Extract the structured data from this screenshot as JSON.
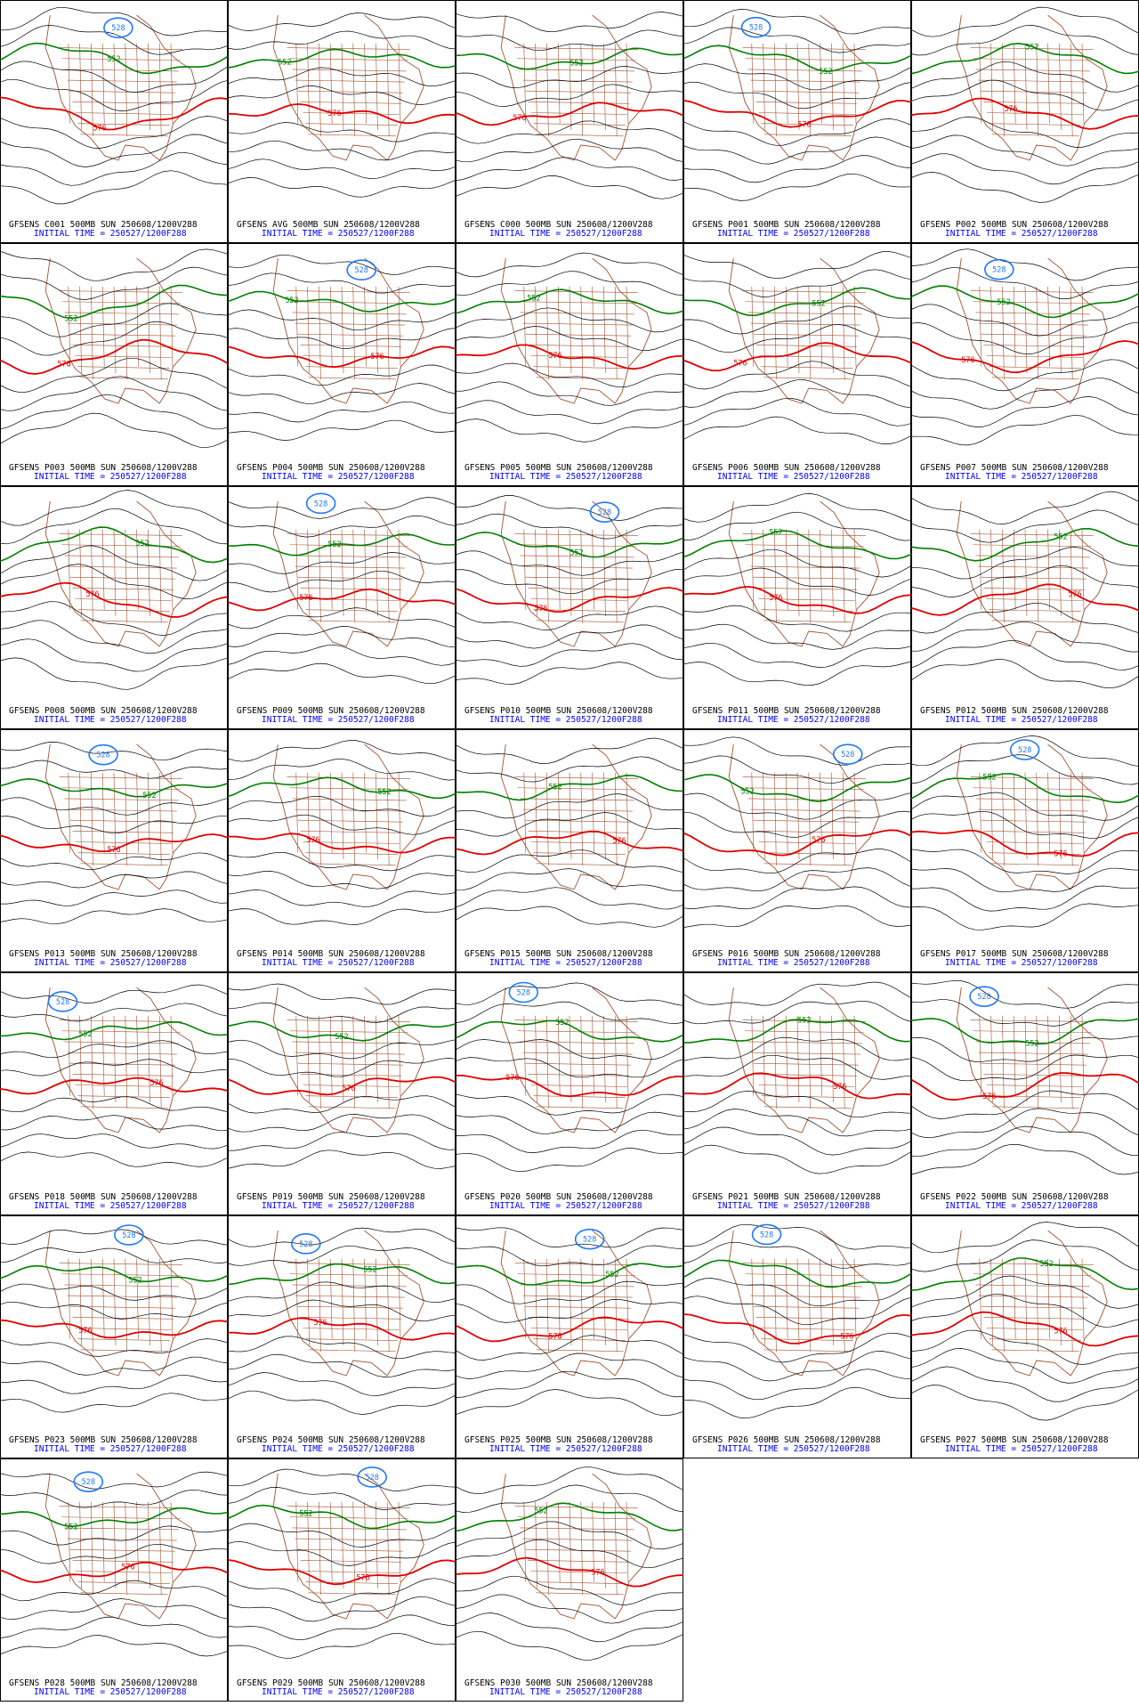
{
  "title_colors": {
    "line1": "#000000",
    "line2": "#0000ff"
  },
  "contour_colors": {
    "528": "#1e78ff",
    "552": "#008000",
    "576": "#e00000"
  },
  "panels": [
    {
      "line1": "GFSENS C001 500MB SUN 250608/1200V288",
      "line2": "INITIAL TIME = 250527/1200F288",
      "labels": [
        "528",
        "552",
        "576"
      ]
    },
    {
      "line1": "GFSENS AVG 500MB SUN 250608/1200V288",
      "line2": "INITIAL TIME = 250527/1200F288",
      "labels": [
        "552",
        "576"
      ]
    },
    {
      "line1": "GFSENS C000 500MB SUN 250608/1200V288",
      "line2": "INITIAL TIME = 250527/1200F288",
      "labels": [
        "552",
        "576"
      ]
    },
    {
      "line1": "GFSENS P001 500MB SUN 250608/1200V288",
      "line2": "INITIAL TIME = 250527/1200F288",
      "labels": [
        "528",
        "552",
        "576"
      ]
    },
    {
      "line1": "GFSENS P002 500MB SUN 250608/1200V288",
      "line2": "INITIAL TIME = 250527/1200F288",
      "labels": [
        "552",
        "576"
      ]
    },
    {
      "line1": "GFSENS P003 500MB SUN 250608/1200V288",
      "line2": "INITIAL TIME = 250527/1200F288",
      "labels": [
        "552",
        "576"
      ]
    },
    {
      "line1": "GFSENS P004 500MB SUN 250608/1200V288",
      "line2": "INITIAL TIME = 250527/1200F288",
      "labels": [
        "528",
        "552",
        "576"
      ]
    },
    {
      "line1": "GFSENS P005 500MB SUN 250608/1200V288",
      "line2": "INITIAL TIME = 250527/1200F288",
      "labels": [
        "552",
        "576"
      ]
    },
    {
      "line1": "GFSENS P006 500MB SUN 250608/1200V288",
      "line2": "INITIAL TIME = 250527/1200F288",
      "labels": [
        "552",
        "576"
      ]
    },
    {
      "line1": "GFSENS P007 500MB SUN 250608/1200V288",
      "line2": "INITIAL TIME = 250527/1200F288",
      "labels": [
        "528",
        "552",
        "576"
      ]
    },
    {
      "line1": "GFSENS P008 500MB SUN 250608/1200V288",
      "line2": "INITIAL TIME = 250527/1200F288",
      "labels": [
        "552",
        "576"
      ]
    },
    {
      "line1": "GFSENS P009 500MB SUN 250608/1200V288",
      "line2": "INITIAL TIME = 250527/1200F288",
      "labels": [
        "528",
        "552",
        "576"
      ]
    },
    {
      "line1": "GFSENS P010 500MB SUN 250608/1200V288",
      "line2": "INITIAL TIME = 250527/1200F288",
      "labels": [
        "528",
        "552",
        "576"
      ]
    },
    {
      "line1": "GFSENS P011 500MB SUN 250608/1200V288",
      "line2": "INITIAL TIME = 250527/1200F288",
      "labels": [
        "552",
        "576"
      ]
    },
    {
      "line1": "GFSENS P012 500MB SUN 250608/1200V288",
      "line2": "INITIAL TIME = 250527/1200F288",
      "labels": [
        "552",
        "576"
      ]
    },
    {
      "line1": "GFSENS P013 500MB SUN 250608/1200V288",
      "line2": "INITIAL TIME = 250527/1200F288",
      "labels": [
        "528",
        "552",
        "576"
      ]
    },
    {
      "line1": "GFSENS P014 500MB SUN 250608/1200V288",
      "line2": "INITIAL TIME = 250527/1200F288",
      "labels": [
        "552",
        "576"
      ]
    },
    {
      "line1": "GFSENS P015 500MB SUN 250608/1200V288",
      "line2": "INITIAL TIME = 250527/1200F288",
      "labels": [
        "552",
        "576"
      ]
    },
    {
      "line1": "GFSENS P016 500MB SUN 250608/1200V288",
      "line2": "INITIAL TIME = 250527/1200F288",
      "labels": [
        "528",
        "552",
        "576"
      ]
    },
    {
      "line1": "GFSENS P017 500MB SUN 250608/1200V288",
      "line2": "INITIAL TIME = 250527/1200F288",
      "labels": [
        "528",
        "552",
        "576"
      ]
    },
    {
      "line1": "GFSENS P018 500MB SUN 250608/1200V288",
      "line2": "INITIAL TIME = 250527/1200F288",
      "labels": [
        "528",
        "552",
        "576"
      ]
    },
    {
      "line1": "GFSENS P019 500MB SUN 250608/1200V288",
      "line2": "INITIAL TIME = 250527/1200F288",
      "labels": [
        "552",
        "576"
      ]
    },
    {
      "line1": "GFSENS P020 500MB SUN 250608/1200V288",
      "line2": "INITIAL TIME = 250527/1200F288",
      "labels": [
        "528",
        "552",
        "576"
      ]
    },
    {
      "line1": "GFSENS P021 500MB SUN 250608/1200V288",
      "line2": "INITIAL TIME = 250527/1200F288",
      "labels": [
        "552",
        "576"
      ]
    },
    {
      "line1": "GFSENS P022 500MB SUN 250608/1200V288",
      "line2": "INITIAL TIME = 250527/1200F288",
      "labels": [
        "528",
        "552",
        "576"
      ]
    },
    {
      "line1": "GFSENS P023 500MB SUN 250608/1200V288",
      "line2": "INITIAL TIME = 250527/1200F288",
      "labels": [
        "528",
        "552",
        "576"
      ]
    },
    {
      "line1": "GFSENS P024 500MB SUN 250608/1200V288",
      "line2": "INITIAL TIME = 250527/1200F288",
      "labels": [
        "528",
        "552",
        "576"
      ]
    },
    {
      "line1": "GFSENS P025 500MB SUN 250608/1200V288",
      "line2": "INITIAL TIME = 250527/1200F288",
      "labels": [
        "528",
        "552",
        "576"
      ]
    },
    {
      "line1": "GFSENS P026 500MB SUN 250608/1200V288",
      "line2": "INITIAL TIME = 250527/1200F288",
      "labels": [
        "528",
        "576"
      ]
    },
    {
      "line1": "GFSENS P027 500MB SUN 250608/1200V288",
      "line2": "INITIAL TIME = 250527/1200F288",
      "labels": [
        "552",
        "576"
      ]
    },
    {
      "line1": "GFSENS P028 500MB SUN 250608/1200V288",
      "line2": "INITIAL TIME = 250527/1200F288",
      "labels": [
        "528",
        "552",
        "576"
      ]
    },
    {
      "line1": "GFSENS P029 500MB SUN 250608/1200V288",
      "line2": "INITIAL TIME = 250527/1200F288",
      "labels": [
        "528",
        "552",
        "576"
      ]
    },
    {
      "line1": "GFSENS P030 500MB SUN 250608/1200V288",
      "line2": "INITIAL TIME = 250527/1200F288",
      "labels": [
        "552",
        "576"
      ]
    }
  ]
}
